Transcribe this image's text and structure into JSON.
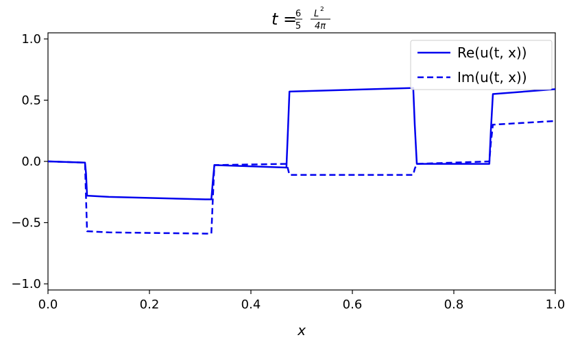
{
  "chart_data": {
    "type": "line",
    "title_parts": {
      "lhs": "t",
      "eq": "=",
      "num": "6",
      "den": "5",
      "fnum": "L",
      "fexp": "2",
      "fden": "4π"
    },
    "xlabel": "x",
    "ylabel": "",
    "xlim": [
      0.0,
      1.0
    ],
    "ylim": [
      -1.05,
      1.05
    ],
    "xticks": [
      0.0,
      0.2,
      0.4,
      0.6,
      0.8,
      1.0
    ],
    "xtick_labels": [
      "0.0",
      "0.2",
      "0.4",
      "0.6",
      "0.8",
      "1.0"
    ],
    "yticks": [
      -1.0,
      -0.5,
      0.0,
      0.5,
      1.0
    ],
    "ytick_labels": [
      "−1.0",
      "−0.5",
      "0.0",
      "0.5",
      "1.0"
    ],
    "grid": false,
    "legend_position": "upper right",
    "series": [
      {
        "name": "Re(u(t, x))",
        "style": "solid",
        "color": "#0000ee",
        "x": [
          0.0,
          0.073,
          0.075,
          0.077,
          0.12,
          0.31,
          0.322,
          0.325,
          0.328,
          0.47,
          0.473,
          0.476,
          0.72,
          0.723,
          0.727,
          0.87,
          0.873,
          0.877,
          1.0
        ],
        "y": [
          0.0,
          -0.01,
          -0.1,
          -0.28,
          -0.29,
          -0.31,
          -0.31,
          -0.16,
          -0.03,
          -0.05,
          0.25,
          0.57,
          0.6,
          0.3,
          -0.02,
          -0.02,
          0.25,
          0.55,
          0.59
        ]
      },
      {
        "name": "Im(u(t, x))",
        "style": "dashed",
        "color": "#0000ee",
        "x": [
          0.0,
          0.073,
          0.075,
          0.077,
          0.12,
          0.31,
          0.322,
          0.325,
          0.328,
          0.47,
          0.473,
          0.476,
          0.72,
          0.723,
          0.727,
          0.87,
          0.873,
          0.877,
          1.0
        ],
        "y": [
          0.0,
          -0.01,
          -0.3,
          -0.57,
          -0.58,
          -0.59,
          -0.59,
          -0.3,
          -0.03,
          -0.02,
          -0.06,
          -0.11,
          -0.11,
          -0.06,
          -0.02,
          0.0,
          0.15,
          0.3,
          0.33
        ]
      }
    ]
  }
}
